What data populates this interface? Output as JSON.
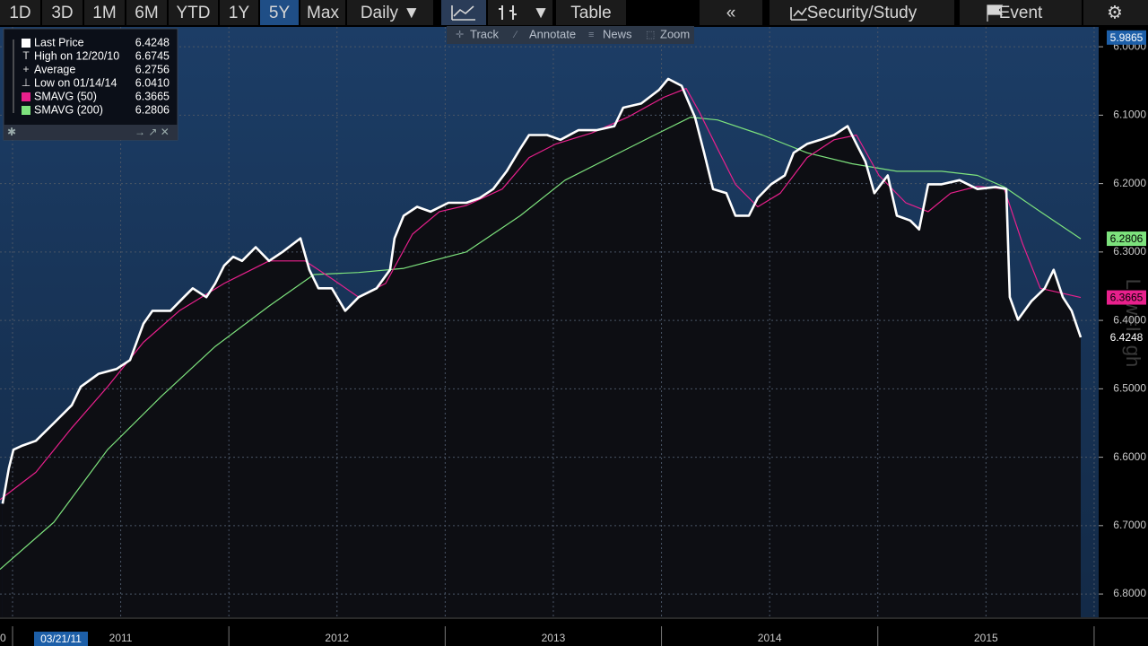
{
  "toolbar": {
    "ranges": [
      "1D",
      "3D",
      "1M",
      "6M",
      "YTD",
      "1Y",
      "5Y",
      "Max"
    ],
    "selected_range": "5Y",
    "frequency": "Daily ▼",
    "dropdown": "▼",
    "table": "Table",
    "collapse": "«",
    "security": "Security/Study",
    "event": "Event"
  },
  "sub_toolbar": [
    "Track",
    "Annotate",
    "News",
    "Zoom"
  ],
  "cursor_date": "03/21/11",
  "axis_fragment": "0",
  "watermark": "Low=High",
  "chart_data": {
    "type": "line",
    "xlim": [
      2010.942,
      2016.021
    ],
    "ylim": [
      6.834,
      5.971
    ],
    "xticks": [
      {
        "value": 2011.5,
        "label": "2011"
      },
      {
        "value": 2012.5,
        "label": "2012"
      },
      {
        "value": 2013.5,
        "label": "2013"
      },
      {
        "value": 2014.5,
        "label": "2014"
      },
      {
        "value": 2015.5,
        "label": "2015"
      }
    ],
    "xgrid": [
      2011,
      2011.5,
      2012,
      2012.5,
      2013,
      2013.5,
      2014,
      2014.5,
      2015,
      2015.5,
      2016
    ],
    "yticks": [
      {
        "value": 6.0,
        "label": "6.0000"
      },
      {
        "value": 6.1,
        "label": "6.1000"
      },
      {
        "value": 6.2,
        "label": "6.2000"
      },
      {
        "value": 6.3,
        "label": "6.3000"
      },
      {
        "value": 6.4,
        "label": "6.4000"
      },
      {
        "value": 6.5,
        "label": "6.5000"
      },
      {
        "value": 6.6,
        "label": "6.6000"
      },
      {
        "value": 6.7,
        "label": "6.7000"
      },
      {
        "value": 6.8,
        "label": "6.8000"
      }
    ],
    "axis_top": 5.9865,
    "grid": true,
    "series": [
      {
        "name": "Last Price",
        "color": "#ffffff",
        "x": [
          2010.954,
          2010.983,
          2011.004,
          2011.046,
          2011.108,
          2011.191,
          2011.274,
          2011.315,
          2011.398,
          2011.481,
          2011.543,
          2011.605,
          2011.647,
          2011.73,
          2011.792,
          2011.833,
          2011.896,
          2011.937,
          2011.978,
          2012.02,
          2012.061,
          2012.124,
          2012.186,
          2012.248,
          2012.331,
          2012.372,
          2012.414,
          2012.476,
          2012.538,
          2012.6,
          2012.683,
          2012.745,
          2012.766,
          2012.808,
          2012.87,
          2012.932,
          2013.015,
          2013.098,
          2013.16,
          2013.222,
          2013.284,
          2013.347,
          2013.388,
          2013.471,
          2013.533,
          2013.616,
          2013.699,
          2013.782,
          2013.823,
          2013.906,
          2013.989,
          2014.031,
          2014.093,
          2014.155,
          2014.197,
          2014.238,
          2014.3,
          2014.342,
          2014.404,
          2014.445,
          2014.507,
          2014.57,
          2014.611,
          2014.673,
          2014.735,
          2014.798,
          2014.86,
          2014.901,
          2014.943,
          2014.984,
          2015.046,
          2015.088,
          2015.15,
          2015.191,
          2015.233,
          2015.295,
          2015.378,
          2015.461,
          2015.544,
          2015.594,
          2015.61,
          2015.648,
          2015.71,
          2015.772,
          2015.813,
          2015.855,
          2015.896,
          2015.938
        ],
        "values": [
          6.668,
          6.616,
          6.589,
          6.583,
          6.576,
          6.55,
          6.524,
          6.497,
          6.478,
          6.471,
          6.458,
          6.405,
          6.386,
          6.386,
          6.366,
          6.353,
          6.366,
          6.346,
          6.32,
          6.307,
          6.313,
          6.293,
          6.313,
          6.3,
          6.28,
          6.326,
          6.353,
          6.353,
          6.386,
          6.366,
          6.353,
          6.326,
          6.28,
          6.247,
          6.234,
          6.241,
          6.228,
          6.228,
          6.221,
          6.208,
          6.182,
          6.149,
          6.129,
          6.129,
          6.136,
          6.122,
          6.122,
          6.116,
          6.089,
          6.083,
          6.063,
          6.047,
          6.057,
          6.103,
          6.155,
          6.208,
          6.214,
          6.247,
          6.247,
          6.221,
          6.201,
          6.188,
          6.155,
          6.142,
          6.136,
          6.129,
          6.116,
          6.142,
          6.168,
          6.214,
          6.188,
          6.247,
          6.254,
          6.267,
          6.201,
          6.201,
          6.195,
          6.208,
          6.205,
          6.208,
          6.366,
          6.399,
          6.372,
          6.353,
          6.326,
          6.366,
          6.386,
          6.4248
        ]
      },
      {
        "name": "SMAVG (50)",
        "color": "#e8208c",
        "x": [
          2010.942,
          2011.108,
          2011.274,
          2011.439,
          2011.605,
          2011.771,
          2011.978,
          2012.186,
          2012.352,
          2012.476,
          2012.6,
          2012.725,
          2012.849,
          2012.973,
          2013.098,
          2013.264,
          2013.388,
          2013.512,
          2013.678,
          2013.844,
          2014.01,
          2014.114,
          2014.176,
          2014.259,
          2014.342,
          2014.445,
          2014.549,
          2014.673,
          2014.798,
          2014.901,
          2015.005,
          2015.129,
          2015.233,
          2015.337,
          2015.461,
          2015.585,
          2015.668,
          2015.751,
          2015.834,
          2015.938
        ],
        "values": [
          6.662,
          6.622,
          6.557,
          6.497,
          6.432,
          6.386,
          6.346,
          6.313,
          6.313,
          6.339,
          6.366,
          6.346,
          6.274,
          6.241,
          6.232,
          6.208,
          6.162,
          6.142,
          6.126,
          6.103,
          6.074,
          6.061,
          6.096,
          6.149,
          6.201,
          6.234,
          6.214,
          6.162,
          6.136,
          6.129,
          6.188,
          6.228,
          6.241,
          6.214,
          6.204,
          6.208,
          6.287,
          6.353,
          6.359,
          6.3665
        ]
      },
      {
        "name": "SMAVG (200)",
        "color": "#7de27d",
        "x": [
          2010.942,
          2011.191,
          2011.439,
          2011.688,
          2011.937,
          2012.186,
          2012.393,
          2012.6,
          2012.808,
          2013.098,
          2013.347,
          2013.554,
          2013.761,
          2013.968,
          2014.134,
          2014.259,
          2014.466,
          2014.673,
          2014.881,
          2015.088,
          2015.295,
          2015.461,
          2015.585,
          2015.751,
          2015.938
        ],
        "values": [
          6.764,
          6.695,
          6.589,
          6.511,
          6.438,
          6.379,
          6.333,
          6.33,
          6.324,
          6.3,
          6.247,
          6.195,
          6.162,
          6.129,
          6.103,
          6.107,
          6.129,
          6.155,
          6.171,
          6.182,
          6.182,
          6.188,
          6.205,
          6.241,
          6.2806
        ]
      }
    ],
    "stats": [
      {
        "name": "High on 12/20/10",
        "value": 6.6745
      },
      {
        "name": "Average",
        "value": 6.2756
      },
      {
        "name": "Low on 01/14/14",
        "value": 6.041,
        "value_label": "6.0410"
      }
    ]
  }
}
